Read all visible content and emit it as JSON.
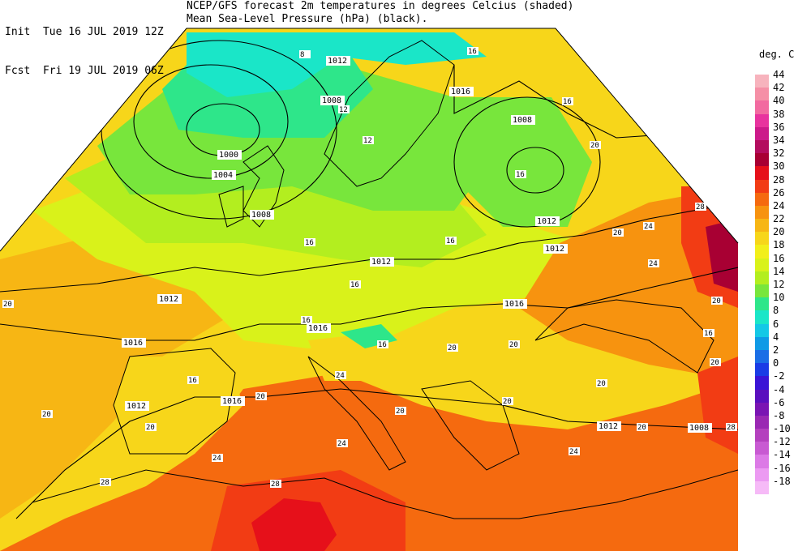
{
  "header": {
    "init_label": "Init",
    "init_time": "Tue 16 JUL 2019 12Z",
    "fcst_label": "Fcst",
    "fcst_time": "Fri 19 JUL 2019 06Z",
    "line1": "NCEP/GFS forecast 2m temperatures in degrees Celcius (shaded)",
    "line2": "Mean Sea-Level Pressure (hPa) (black)."
  },
  "legend": {
    "title": "deg. C",
    "items": [
      {
        "label": "44",
        "color": "#f7b3bd"
      },
      {
        "label": "42",
        "color": "#f58fa6"
      },
      {
        "label": "40",
        "color": "#f26aa0"
      },
      {
        "label": "38",
        "color": "#e8339e"
      },
      {
        "label": "36",
        "color": "#cc1a8a"
      },
      {
        "label": "34",
        "color": "#b30d5e"
      },
      {
        "label": "32",
        "color": "#a80033"
      },
      {
        "label": "30",
        "color": "#e6101a"
      },
      {
        "label": "28",
        "color": "#f23c14"
      },
      {
        "label": "26",
        "color": "#f56a0f"
      },
      {
        "label": "24",
        "color": "#f7930f"
      },
      {
        "label": "22",
        "color": "#f7b614"
      },
      {
        "label": "20",
        "color": "#f7d61a"
      },
      {
        "label": "18",
        "color": "#f2ef1a"
      },
      {
        "label": "16",
        "color": "#d9f21a"
      },
      {
        "label": "14",
        "color": "#b3ee1f"
      },
      {
        "label": "12",
        "color": "#78e63c"
      },
      {
        "label": "10",
        "color": "#2ee68a"
      },
      {
        "label": "8",
        "color": "#1ae6c8"
      },
      {
        "label": "6",
        "color": "#14c8e6"
      },
      {
        "label": "4",
        "color": "#0f9ae6"
      },
      {
        "label": "2",
        "color": "#1a6ee6"
      },
      {
        "label": "0",
        "color": "#1a3ce6"
      },
      {
        "label": "-2",
        "color": "#3a14d6"
      },
      {
        "label": "-4",
        "color": "#5a0fbe"
      },
      {
        "label": "-6",
        "color": "#7a14b3"
      },
      {
        "label": "-8",
        "color": "#9a28b3"
      },
      {
        "label": "-10",
        "color": "#b440be"
      },
      {
        "label": "-12",
        "color": "#c85ad2"
      },
      {
        "label": "-14",
        "color": "#dc7ae6"
      },
      {
        "label": "-16",
        "color": "#ec9af2"
      },
      {
        "label": "-18",
        "color": "#f6baf7"
      }
    ]
  },
  "isobar_labels": [
    "1012",
    "1008",
    "1000",
    "1004",
    "1008",
    "1012",
    "1012",
    "1016",
    "1016",
    "1012",
    "1016",
    "1008",
    "1012",
    "1016",
    "1012",
    "1008",
    "1016",
    "1012"
  ],
  "temperature_labels": [
    "8",
    "12",
    "16",
    "16",
    "16",
    "12",
    "16",
    "20",
    "16",
    "16",
    "16",
    "20",
    "24",
    "20",
    "24",
    "20",
    "28",
    "16",
    "20",
    "20",
    "24",
    "20",
    "28",
    "20",
    "24",
    "16",
    "20",
    "20",
    "24",
    "20",
    "28",
    "20",
    "24",
    "28",
    "20",
    "20",
    "16"
  ]
}
